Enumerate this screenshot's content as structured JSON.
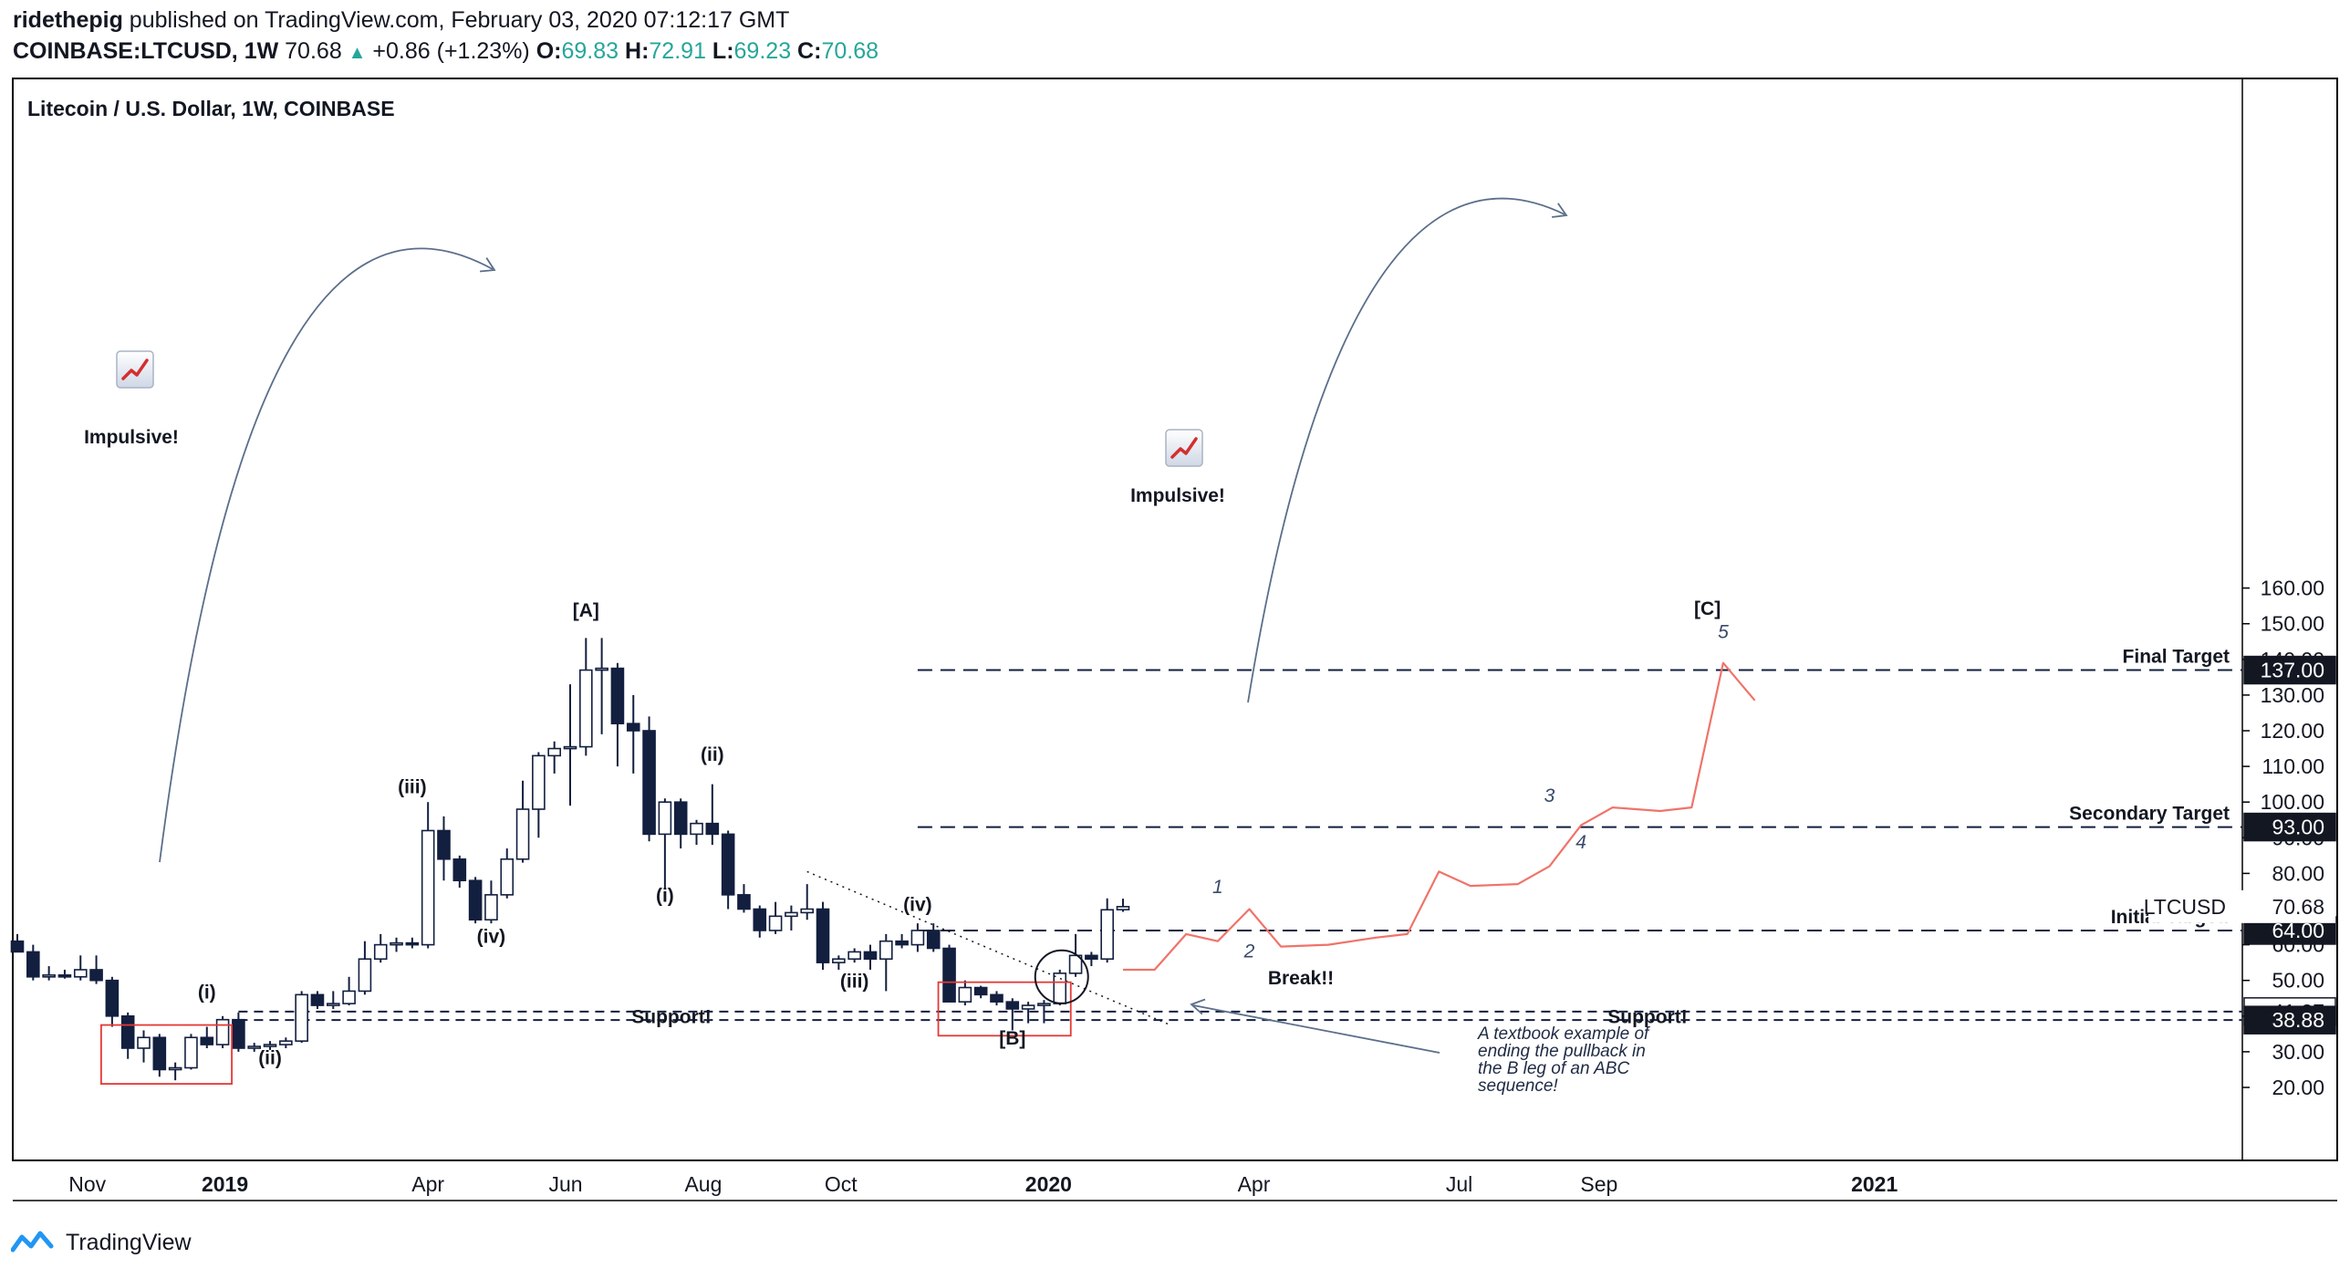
{
  "header": {
    "author": "ridethepig",
    "published_text": "published on TradingView.com, February 03, 2020 07:12:17 GMT",
    "symbol_line": "COINBASE:LTCUSD, 1W",
    "last": "70.68",
    "change": "+0.86 (+1.23%)",
    "o_label": "O:",
    "o": "69.83",
    "h_label": "H:",
    "h": "72.91",
    "l_label": "L:",
    "l": "69.23",
    "c_label": "C:",
    "c": "70.68"
  },
  "footer": {
    "brand": "TradingView"
  },
  "colors": {
    "bear": "#131f3f",
    "bull_fill": "#ffffff",
    "projection": "#f0736a",
    "box": "#e53935",
    "arrow": "#5b6e8a",
    "text": "#131722",
    "accent_up": "#26a69a"
  },
  "chart_data": {
    "type": "candlestick",
    "title": "Litecoin / U.S. Dollar, 1W, COINBASE",
    "symbol_label": "LTCUSD",
    "ylim": [
      10,
      161
    ],
    "y_ticks": [
      20,
      30,
      40,
      50,
      60,
      70,
      80,
      90,
      100,
      110,
      120,
      130,
      140,
      150,
      160
    ],
    "y_tick_labels": [
      "20.00",
      "30.00",
      "40.00",
      "50.00",
      "60.00",
      "70.00",
      "80.00",
      "90.00",
      "100.00",
      "110.00",
      "120.00",
      "130.00",
      "140.00",
      "150.00",
      "160.00"
    ],
    "x_ticks": [
      "Nov",
      "2019",
      "Apr",
      "Jun",
      "Aug",
      "Oct",
      "2020",
      "Apr",
      "Jul",
      "Sep",
      "2021"
    ],
    "x_tick_dates": [
      "2018-11-01",
      "2019-01-01",
      "2019-04-01",
      "2019-06-01",
      "2019-08-01",
      "2019-10-01",
      "2020-01-01",
      "2020-04-01",
      "2020-07-01",
      "2020-09-01",
      "2021-01-01"
    ],
    "bold_x_ticks": [
      "2019",
      "2020",
      "2021"
    ],
    "candles": [
      {
        "date": "2018-10-01",
        "o": 61,
        "h": 63,
        "l": 58,
        "c": 58
      },
      {
        "date": "2018-10-08",
        "o": 58,
        "h": 60,
        "l": 50,
        "c": 51
      },
      {
        "date": "2018-10-15",
        "o": 51,
        "h": 54,
        "l": 50,
        "c": 51.5
      },
      {
        "date": "2018-10-22",
        "o": 51.5,
        "h": 53,
        "l": 50.5,
        "c": 51
      },
      {
        "date": "2018-10-29",
        "o": 51,
        "h": 57,
        "l": 50,
        "c": 53
      },
      {
        "date": "2018-11-05",
        "o": 53,
        "h": 57,
        "l": 49,
        "c": 50
      },
      {
        "date": "2018-11-12",
        "o": 50,
        "h": 51,
        "l": 37,
        "c": 40
      },
      {
        "date": "2018-11-19",
        "o": 40,
        "h": 41,
        "l": 28,
        "c": 31
      },
      {
        "date": "2018-11-26",
        "o": 31,
        "h": 36,
        "l": 27,
        "c": 34
      },
      {
        "date": "2018-12-03",
        "o": 34,
        "h": 35,
        "l": 23,
        "c": 25
      },
      {
        "date": "2018-12-10",
        "o": 25,
        "h": 27,
        "l": 22,
        "c": 25.5
      },
      {
        "date": "2018-12-17",
        "o": 25.5,
        "h": 35,
        "l": 25,
        "c": 34
      },
      {
        "date": "2018-12-24",
        "o": 34,
        "h": 37,
        "l": 31,
        "c": 32
      },
      {
        "date": "2018-12-31",
        "o": 32,
        "h": 40,
        "l": 31,
        "c": 39
      },
      {
        "date": "2019-01-07",
        "o": 39,
        "h": 41,
        "l": 30,
        "c": 31
      },
      {
        "date": "2019-01-14",
        "o": 31,
        "h": 32.5,
        "l": 30,
        "c": 31.5
      },
      {
        "date": "2019-01-21",
        "o": 31.5,
        "h": 33,
        "l": 30.5,
        "c": 32
      },
      {
        "date": "2019-01-28",
        "o": 32,
        "h": 34,
        "l": 31,
        "c": 33
      },
      {
        "date": "2019-02-04",
        "o": 33,
        "h": 47,
        "l": 32.5,
        "c": 46
      },
      {
        "date": "2019-02-11",
        "o": 46,
        "h": 47,
        "l": 42,
        "c": 43
      },
      {
        "date": "2019-02-18",
        "o": 43,
        "h": 47,
        "l": 42,
        "c": 43.5
      },
      {
        "date": "2019-02-25",
        "o": 43.5,
        "h": 51,
        "l": 43,
        "c": 47
      },
      {
        "date": "2019-03-04",
        "o": 47,
        "h": 61,
        "l": 46,
        "c": 56
      },
      {
        "date": "2019-03-11",
        "o": 56,
        "h": 63,
        "l": 55,
        "c": 60
      },
      {
        "date": "2019-03-18",
        "o": 60,
        "h": 62,
        "l": 58,
        "c": 60.5
      },
      {
        "date": "2019-03-25",
        "o": 60.5,
        "h": 62,
        "l": 59,
        "c": 60
      },
      {
        "date": "2019-04-01",
        "o": 60,
        "h": 100,
        "l": 59,
        "c": 92
      },
      {
        "date": "2019-04-08",
        "o": 92,
        "h": 96,
        "l": 78,
        "c": 84
      },
      {
        "date": "2019-04-15",
        "o": 84,
        "h": 85,
        "l": 76,
        "c": 78
      },
      {
        "date": "2019-04-22",
        "o": 78,
        "h": 79,
        "l": 66,
        "c": 67
      },
      {
        "date": "2019-04-29",
        "o": 67,
        "h": 78,
        "l": 66,
        "c": 74
      },
      {
        "date": "2019-05-06",
        "o": 74,
        "h": 87,
        "l": 73,
        "c": 84
      },
      {
        "date": "2019-05-13",
        "o": 84,
        "h": 106,
        "l": 83,
        "c": 98
      },
      {
        "date": "2019-05-20",
        "o": 98,
        "h": 114,
        "l": 90,
        "c": 113
      },
      {
        "date": "2019-05-27",
        "o": 113,
        "h": 117,
        "l": 108,
        "c": 115
      },
      {
        "date": "2019-06-03",
        "o": 115,
        "h": 133,
        "l": 99,
        "c": 115.5
      },
      {
        "date": "2019-06-10",
        "o": 115.5,
        "h": 146,
        "l": 113,
        "c": 137
      },
      {
        "date": "2019-06-17",
        "o": 137,
        "h": 146,
        "l": 119,
        "c": 137.5
      },
      {
        "date": "2019-06-24",
        "o": 137.5,
        "h": 139,
        "l": 110,
        "c": 122
      },
      {
        "date": "2019-07-01",
        "o": 122,
        "h": 130,
        "l": 108,
        "c": 120
      },
      {
        "date": "2019-07-08",
        "o": 120,
        "h": 124,
        "l": 89,
        "c": 91
      },
      {
        "date": "2019-07-15",
        "o": 91,
        "h": 101,
        "l": 76,
        "c": 100
      },
      {
        "date": "2019-07-22",
        "o": 100,
        "h": 101,
        "l": 87,
        "c": 91
      },
      {
        "date": "2019-07-29",
        "o": 91,
        "h": 95,
        "l": 88,
        "c": 94
      },
      {
        "date": "2019-08-05",
        "o": 94,
        "h": 105,
        "l": 88,
        "c": 91
      },
      {
        "date": "2019-08-12",
        "o": 91,
        "h": 92,
        "l": 70,
        "c": 74
      },
      {
        "date": "2019-08-19",
        "o": 74,
        "h": 77,
        "l": 69,
        "c": 70
      },
      {
        "date": "2019-08-26",
        "o": 70,
        "h": 71,
        "l": 62,
        "c": 64
      },
      {
        "date": "2019-09-02",
        "o": 64,
        "h": 72,
        "l": 63,
        "c": 68
      },
      {
        "date": "2019-09-09",
        "o": 68,
        "h": 71,
        "l": 64,
        "c": 69
      },
      {
        "date": "2019-09-16",
        "o": 69,
        "h": 77,
        "l": 67,
        "c": 70
      },
      {
        "date": "2019-09-23",
        "o": 70,
        "h": 72,
        "l": 53,
        "c": 55
      },
      {
        "date": "2019-09-30",
        "o": 55,
        "h": 57,
        "l": 53,
        "c": 56
      },
      {
        "date": "2019-10-07",
        "o": 56,
        "h": 59,
        "l": 55,
        "c": 58
      },
      {
        "date": "2019-10-14",
        "o": 58,
        "h": 60,
        "l": 53,
        "c": 56
      },
      {
        "date": "2019-10-21",
        "o": 56,
        "h": 63,
        "l": 47,
        "c": 61
      },
      {
        "date": "2019-10-28",
        "o": 61,
        "h": 63,
        "l": 59,
        "c": 60
      },
      {
        "date": "2019-11-04",
        "o": 60,
        "h": 66,
        "l": 58,
        "c": 64
      },
      {
        "date": "2019-11-11",
        "o": 64,
        "h": 66,
        "l": 58,
        "c": 59
      },
      {
        "date": "2019-11-18",
        "o": 59,
        "h": 60,
        "l": 44,
        "c": 44
      },
      {
        "date": "2019-11-25",
        "o": 44,
        "h": 50,
        "l": 43,
        "c": 48
      },
      {
        "date": "2019-12-02",
        "o": 48,
        "h": 48.5,
        "l": 45,
        "c": 46
      },
      {
        "date": "2019-12-09",
        "o": 46,
        "h": 47,
        "l": 43,
        "c": 44
      },
      {
        "date": "2019-12-16",
        "o": 44,
        "h": 45,
        "l": 36,
        "c": 42
      },
      {
        "date": "2019-12-23",
        "o": 42,
        "h": 44,
        "l": 38,
        "c": 43
      },
      {
        "date": "2019-12-30",
        "o": 43,
        "h": 44.5,
        "l": 38,
        "c": 43.5
      },
      {
        "date": "2020-01-06",
        "o": 43.5,
        "h": 53,
        "l": 43,
        "c": 52
      },
      {
        "date": "2020-01-13",
        "o": 52,
        "h": 63,
        "l": 51,
        "c": 57
      },
      {
        "date": "2020-01-20",
        "o": 57,
        "h": 58,
        "l": 54,
        "c": 56
      },
      {
        "date": "2020-01-27",
        "o": 56,
        "h": 73,
        "l": 55,
        "c": 69.8
      },
      {
        "date": "2020-02-03",
        "o": 69.83,
        "h": 72.91,
        "l": 69.23,
        "c": 70.68
      }
    ],
    "projection": {
      "name": "projected path",
      "points": [
        {
          "date": "2020-02-03",
          "v": 53
        },
        {
          "date": "2020-02-17",
          "v": 53
        },
        {
          "date": "2020-03-02",
          "v": 63
        },
        {
          "date": "2020-03-16",
          "v": 61
        },
        {
          "date": "2020-03-30",
          "v": 70
        },
        {
          "date": "2020-04-13",
          "v": 59.5
        },
        {
          "date": "2020-05-04",
          "v": 60
        },
        {
          "date": "2020-05-25",
          "v": 62
        },
        {
          "date": "2020-06-08",
          "v": 63
        },
        {
          "date": "2020-06-22",
          "v": 80.5
        },
        {
          "date": "2020-07-06",
          "v": 76.5
        },
        {
          "date": "2020-07-27",
          "v": 77
        },
        {
          "date": "2020-08-10",
          "v": 82
        },
        {
          "date": "2020-08-24",
          "v": 93.5
        },
        {
          "date": "2020-09-07",
          "v": 98.5
        },
        {
          "date": "2020-09-28",
          "v": 97.5
        },
        {
          "date": "2020-10-12",
          "v": 98.5
        },
        {
          "date": "2020-10-26",
          "v": 139
        },
        {
          "date": "2020-11-09",
          "v": 128.5
        }
      ]
    },
    "levels": [
      {
        "name": "final-target",
        "value": 137.0,
        "label": "Final Target",
        "tag": "137.00",
        "x_from": "2019-11-04",
        "style": "long-dash",
        "tag_style": "dark"
      },
      {
        "name": "secondary-target",
        "value": 93.0,
        "label": "Secondary Target",
        "tag": "93.00",
        "x_from": "2019-11-04",
        "style": "long-dash",
        "tag_style": "dark"
      },
      {
        "name": "initial-target",
        "value": 64.0,
        "label": "Initial Target!",
        "tag": "64.00",
        "x_from": "2019-11-04",
        "style": "long-dash",
        "tag_style": "dark"
      },
      {
        "name": "support-upper",
        "value": 41.27,
        "label": "Support!",
        "tag": "41.27",
        "x_from": "2019-01-07",
        "style": "short-dash",
        "tag_style": "light"
      },
      {
        "name": "support-lower",
        "value": 38.88,
        "label": "",
        "tag": "38.88",
        "x_from": "2019-01-07",
        "style": "short-dash",
        "tag_style": "dark"
      }
    ],
    "last_price_tag": {
      "label": "LTCUSD",
      "value": "70.68"
    },
    "support_labels": [
      "Support!",
      "Support!"
    ],
    "wave_labels": [
      {
        "text": "[A]",
        "date": "2019-06-10",
        "v": 152,
        "style": "bold"
      },
      {
        "text": "(i)",
        "date": "2018-12-24",
        "v": 45,
        "style": "bold"
      },
      {
        "text": "(ii)",
        "date": "2019-01-21",
        "v": 26.5,
        "style": "bold"
      },
      {
        "text": "(iii)",
        "date": "2019-03-25",
        "v": 102.5,
        "style": "bold"
      },
      {
        "text": "(iv)",
        "date": "2019-04-29",
        "v": 60.5,
        "style": "bold"
      },
      {
        "text": "(i)",
        "date": "2019-07-15",
        "v": 72,
        "style": "bold"
      },
      {
        "text": "(ii)",
        "date": "2019-08-05",
        "v": 111.5,
        "style": "bold"
      },
      {
        "text": "(iii)",
        "date": "2019-10-07",
        "v": 48,
        "style": "bold"
      },
      {
        "text": "(iv)",
        "date": "2019-11-04",
        "v": 69.5,
        "style": "bold"
      },
      {
        "text": "[B]",
        "date": "2019-12-16",
        "v": 32,
        "style": "bold"
      },
      {
        "text": "[C]",
        "date": "2020-10-19",
        "v": 152.5,
        "style": "bold"
      },
      {
        "text": "1",
        "date": "2020-03-16",
        "v": 74.5,
        "style": "italic"
      },
      {
        "text": "2",
        "date": "2020-03-30",
        "v": 56.5,
        "style": "italic"
      },
      {
        "text": "3",
        "date": "2020-08-10",
        "v": 100,
        "style": "italic"
      },
      {
        "text": "4",
        "date": "2020-08-24",
        "v": 87,
        "style": "italic"
      },
      {
        "text": "5",
        "date": "2020-10-26",
        "v": 146,
        "style": "italic"
      }
    ],
    "annotations": {
      "impulsive_1": "Impulsive!",
      "impulsive_2": "Impulsive!",
      "break": "Break!!",
      "note_lines": [
        "A textbook example of",
        "ending the pullback in",
        "the B leg of an ABC",
        "sequence!"
      ]
    }
  }
}
